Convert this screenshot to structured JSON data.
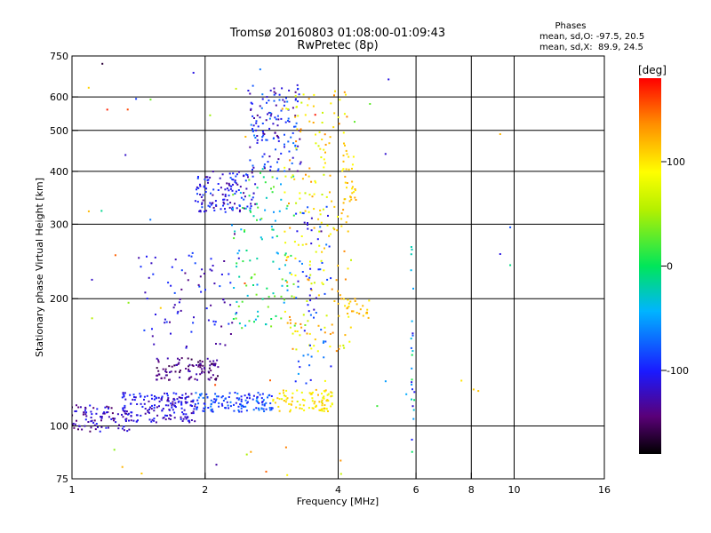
{
  "chart_data": {
    "type": "scatter",
    "title": "Tromsø 20160803 01:08:00-01:09:43",
    "subtitle": "RwPretec (8p)",
    "xlabel": "Frequency [MHz]",
    "ylabel": "Stationary phase Virtual Height [km]",
    "x_scale": "log",
    "y_scale": "log",
    "xlim": [
      1,
      16
    ],
    "ylim": [
      75,
      750
    ],
    "x_ticks": [
      1,
      2,
      4,
      6,
      8,
      10,
      16
    ],
    "x_tick_labels": [
      "1",
      "2",
      "4",
      "6",
      "8",
      "10",
      "16"
    ],
    "y_ticks": [
      75,
      100,
      200,
      300,
      400,
      500,
      600,
      750
    ],
    "y_tick_labels": [
      "75",
      "100",
      "200",
      "300",
      "400",
      "500",
      "600",
      "750"
    ],
    "grid": true,
    "phase_info": {
      "heading": "Phases",
      "line1": "mean, sd,O: -97.5, 20.5",
      "line2": "mean, sd,X:  89.9, 24.5"
    },
    "colorbar": {
      "label": "[deg]",
      "range": [
        -180,
        180
      ],
      "ticks": [
        100,
        0,
        -100
      ],
      "tick_labels": [
        "100",
        "0",
        "-100"
      ],
      "colormap": "rainbow"
    },
    "clusters": [
      {
        "x": [
          1.0,
          1.35
        ],
        "y": [
          97,
          112
        ],
        "phase": [
          -150,
          -100
        ],
        "n": 90
      },
      {
        "x": [
          1.3,
          1.9
        ],
        "y": [
          102,
          120
        ],
        "phase": [
          -135,
          -90
        ],
        "n": 170
      },
      {
        "x": [
          1.55,
          2.15
        ],
        "y": [
          128,
          145
        ],
        "phase": [
          -160,
          -120
        ],
        "n": 100
      },
      {
        "x": [
          1.9,
          2.85
        ],
        "y": [
          108,
          120
        ],
        "phase": [
          -110,
          -60
        ],
        "n": 130
      },
      {
        "x": [
          2.85,
          3.9
        ],
        "y": [
          108,
          122
        ],
        "phase": [
          70,
          120
        ],
        "n": 90
      },
      {
        "x": [
          1.4,
          2.4
        ],
        "y": [
          150,
          260
        ],
        "phase": [
          -140,
          -80
        ],
        "n": 80
      },
      {
        "x": [
          1.9,
          2.6
        ],
        "y": [
          320,
          400
        ],
        "phase": [
          -140,
          -80
        ],
        "n": 130
      },
      {
        "x": [
          2.5,
          3.3
        ],
        "y": [
          400,
          640
        ],
        "phase": [
          -140,
          -60
        ],
        "n": 140
      },
      {
        "x": [
          2.3,
          3.2
        ],
        "y": [
          170,
          400
        ],
        "phase": [
          -60,
          40
        ],
        "n": 110
      },
      {
        "x": [
          3.0,
          4.3
        ],
        "y": [
          150,
          620
        ],
        "phase": [
          60,
          140
        ],
        "n": 200
      },
      {
        "x": [
          3.2,
          3.9
        ],
        "y": [
          125,
          330
        ],
        "phase": [
          -120,
          -60
        ],
        "n": 60
      },
      {
        "x": [
          4.0,
          4.7
        ],
        "y": [
          180,
          200
        ],
        "phase": [
          90,
          130
        ],
        "n": 25
      },
      {
        "x": [
          4.1,
          4.4
        ],
        "y": [
          340,
          450
        ],
        "phase": [
          90,
          130
        ],
        "n": 25
      },
      {
        "x": [
          5.85,
          5.95
        ],
        "y": [
          85,
          280
        ],
        "phase": [
          -120,
          40
        ],
        "n": 25
      },
      {
        "x": [
          1.0,
          6.0
        ],
        "y": [
          75,
          750
        ],
        "phase": [
          -180,
          180
        ],
        "n": 50
      }
    ],
    "points": [
      {
        "x": 5.2,
        "y": 660,
        "phase": -110
      },
      {
        "x": 9.3,
        "y": 490,
        "phase": 120
      },
      {
        "x": 9.8,
        "y": 295,
        "phase": -80
      },
      {
        "x": 9.3,
        "y": 255,
        "phase": -110
      },
      {
        "x": 9.8,
        "y": 240,
        "phase": -10
      },
      {
        "x": 7.6,
        "y": 128,
        "phase": 100
      },
      {
        "x": 8.1,
        "y": 122,
        "phase": 110
      },
      {
        "x": 8.3,
        "y": 121,
        "phase": 115
      },
      {
        "x": 1.3,
        "y": 80,
        "phase": 120
      },
      {
        "x": 2.75,
        "y": 78,
        "phase": 150
      },
      {
        "x": 3.05,
        "y": 89,
        "phase": 140
      }
    ]
  }
}
